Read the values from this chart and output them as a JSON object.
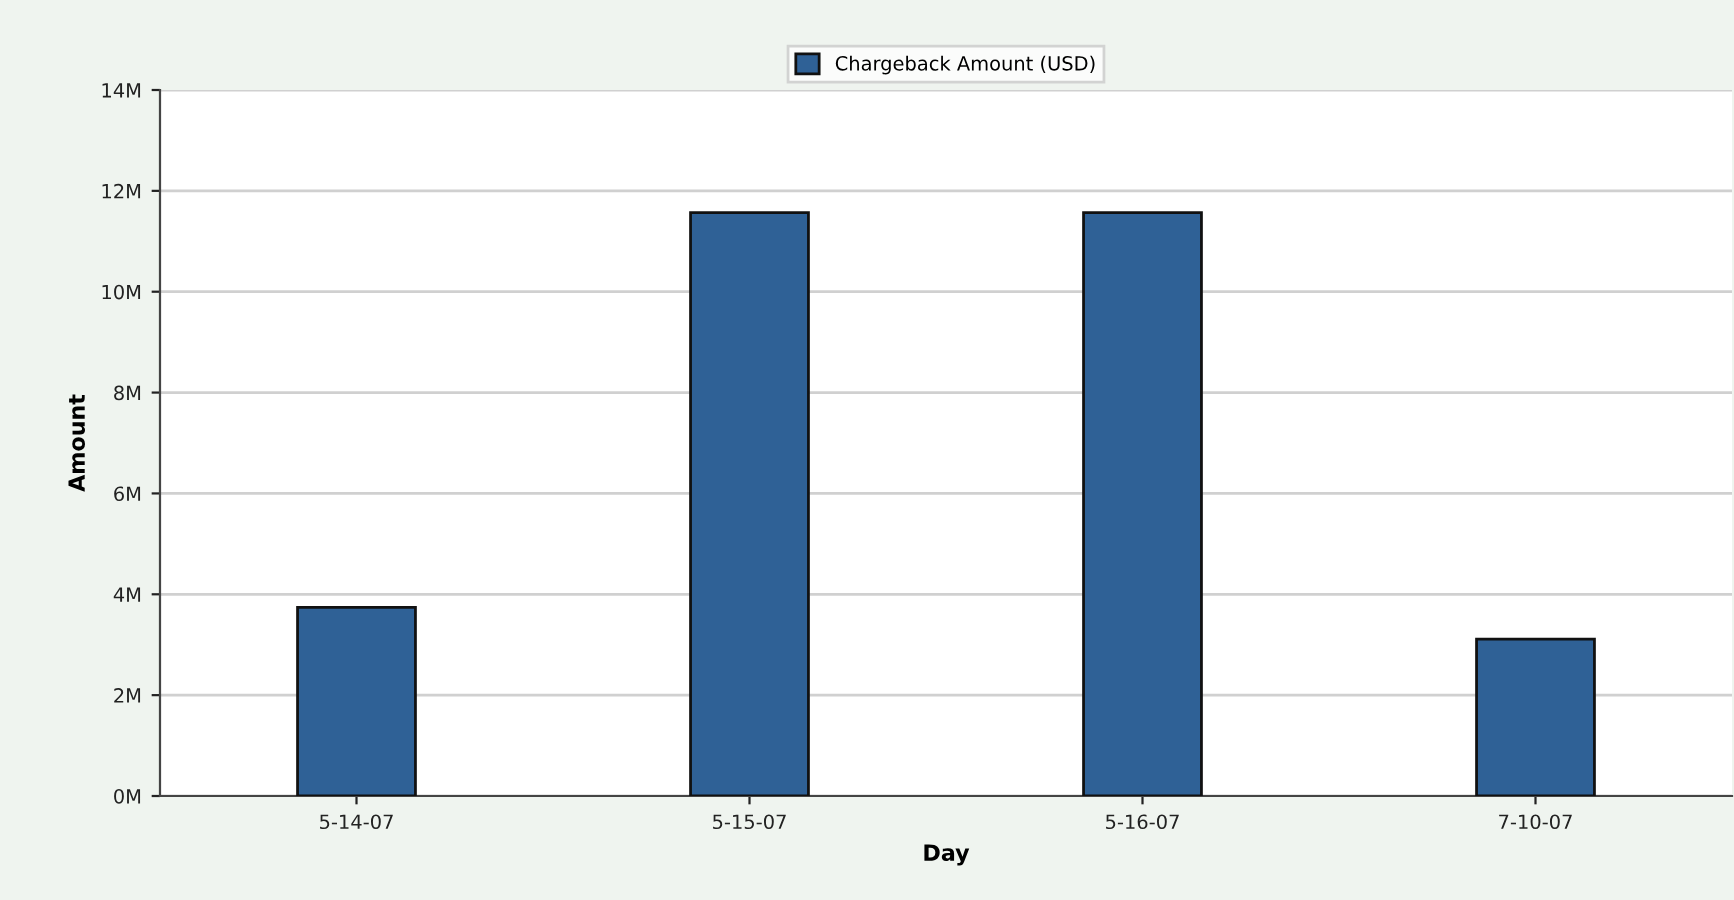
{
  "chart_data": {
    "type": "bar",
    "xlabel": "Day",
    "ylabel": "Amount",
    "categories": [
      "5-14-07",
      "5-15-07",
      "5-16-07",
      "7-10-07"
    ],
    "series": [
      {
        "name": "Chargeback Amount (USD)",
        "color": "#2f6196",
        "values": [
          3740000,
          11570000,
          11570000,
          3110000
        ]
      }
    ],
    "ylim": [
      0,
      14000000
    ],
    "yticks": [
      {
        "value": 0,
        "label": "0M"
      },
      {
        "value": 2000000,
        "label": "2M"
      },
      {
        "value": 4000000,
        "label": "4M"
      },
      {
        "value": 6000000,
        "label": "6M"
      },
      {
        "value": 8000000,
        "label": "8M"
      },
      {
        "value": 10000000,
        "label": "10M"
      },
      {
        "value": 12000000,
        "label": "12M"
      },
      {
        "value": 14000000,
        "label": "14M"
      }
    ],
    "grid": "y",
    "legend": "top"
  }
}
